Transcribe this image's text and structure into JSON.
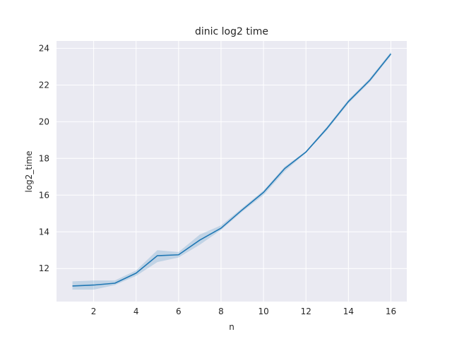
{
  "chart_data": {
    "type": "line",
    "title": "dinic log2 time",
    "xlabel": "n",
    "ylabel": "log2_time",
    "xlim": [
      0.25,
      16.75
    ],
    "ylim": [
      10.2,
      24.4
    ],
    "xticks": [
      2,
      4,
      6,
      8,
      10,
      12,
      14,
      16
    ],
    "yticks": [
      12,
      14,
      16,
      18,
      20,
      22,
      24
    ],
    "grid": true,
    "style": "seaborn-darkgrid",
    "background_color": "#eaeaf2",
    "grid_color": "#ffffff",
    "line_color": "#1f77b4",
    "band_color": "#1f77b4",
    "series": [
      {
        "x": [
          1,
          2,
          3,
          4,
          5,
          6,
          7,
          8,
          9,
          10,
          11,
          12,
          13,
          14,
          15,
          16
        ],
        "values": [
          11.05,
          11.1,
          11.2,
          11.75,
          12.7,
          12.75,
          13.55,
          14.2,
          15.2,
          16.15,
          17.45,
          18.35,
          19.65,
          21.1,
          22.25,
          23.7
        ],
        "ci_lower": [
          10.85,
          10.85,
          11.1,
          11.6,
          12.35,
          12.6,
          13.3,
          14.1,
          15.1,
          16.0,
          17.3,
          18.3,
          19.55,
          21.0,
          22.15,
          23.6
        ],
        "ci_upper": [
          11.3,
          11.35,
          11.35,
          11.9,
          13.0,
          12.9,
          13.85,
          14.35,
          15.3,
          16.25,
          17.55,
          18.4,
          19.75,
          21.2,
          22.35,
          23.8
        ]
      }
    ]
  }
}
